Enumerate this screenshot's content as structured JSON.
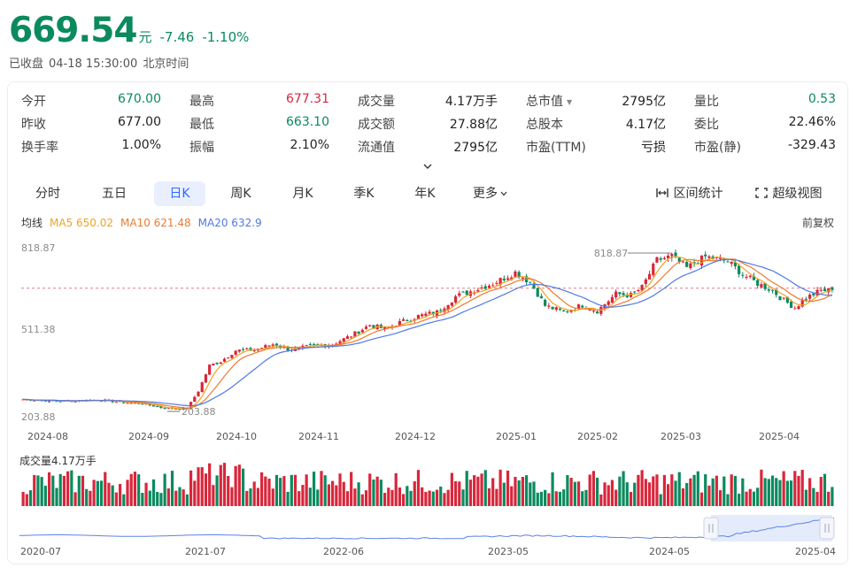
{
  "header": {
    "price": "669.54",
    "unit": "元",
    "change": "-7.46",
    "change_pct": "-1.10%",
    "status": "已收盘",
    "datetime": "04-18 15:30:00",
    "timezone": "北京时间"
  },
  "quote_rows": [
    [
      {
        "label": "今开",
        "value": "670.00",
        "color": "#0b8a5e"
      },
      {
        "label": "最高",
        "value": "677.31",
        "color": "#d9263b"
      },
      {
        "label": "成交量",
        "value": "4.17万手",
        "color": "#222222"
      },
      {
        "label": "总市值",
        "value": "2795亿",
        "color": "#222222"
      },
      {
        "label": "量比",
        "value": "0.53",
        "color": "#0b8a5e"
      }
    ],
    [
      {
        "label": "昨收",
        "value": "677.00",
        "color": "#222222"
      },
      {
        "label": "最低",
        "value": "663.10",
        "color": "#0b8a5e"
      },
      {
        "label": "成交额",
        "value": "27.88亿",
        "color": "#222222"
      },
      {
        "label": "总股本",
        "value": "4.17亿",
        "color": "#222222"
      },
      {
        "label": "委比",
        "value": "22.46%",
        "color": "#222222"
      }
    ],
    [
      {
        "label": "换手率",
        "value": "1.00%",
        "color": "#222222"
      },
      {
        "label": "振幅",
        "value": "2.10%",
        "color": "#222222"
      },
      {
        "label": "流通值",
        "value": "2795亿",
        "color": "#222222"
      },
      {
        "label": "市盈(TTM)",
        "value": "亏损",
        "color": "#222222"
      },
      {
        "label": "市盈(静)",
        "value": "-329.43",
        "color": "#222222"
      }
    ]
  ],
  "tabs": [
    "分时",
    "五日",
    "日K",
    "周K",
    "月K",
    "季K",
    "年K",
    "更多"
  ],
  "active_tab": "日K",
  "tools": {
    "range_stats": "区间统计",
    "super_view": "超级视图"
  },
  "ma": {
    "label": "均线",
    "ma5": "MA5 650.02",
    "ma10": "MA10 621.48",
    "ma20": "MA20 632.9",
    "ma5_color": "#f0a321",
    "ma10_color": "#ef7a2e",
    "ma20_color": "#4f79e6"
  },
  "adjust": "前复权",
  "colors": {
    "up": "#d9263b",
    "down": "#0b8a5e"
  },
  "chart_data": {
    "type": "candlestick",
    "y_axis_labels": [
      "818.87",
      "511.38",
      "203.88"
    ],
    "ylim": [
      203.88,
      818.87
    ],
    "reference_price": 677.0,
    "max_annotation": "818.87",
    "min_annotation": "203.88",
    "x_tick_labels": [
      "2024-08",
      "2024-09",
      "2024-10",
      "2024-11",
      "2024-12",
      "2025-01",
      "2025-02",
      "2025-03",
      "2025-04"
    ],
    "close_anchors": [
      [
        0,
        250
      ],
      [
        10,
        243
      ],
      [
        20,
        249
      ],
      [
        25,
        241
      ],
      [
        32,
        233
      ],
      [
        38,
        216
      ],
      [
        44,
        215
      ],
      [
        47,
        282
      ],
      [
        50,
        380
      ],
      [
        53,
        396
      ],
      [
        57,
        438
      ],
      [
        62,
        440
      ],
      [
        67,
        462
      ],
      [
        72,
        440
      ],
      [
        77,
        454
      ],
      [
        83,
        462
      ],
      [
        88,
        495
      ],
      [
        93,
        536
      ],
      [
        97,
        520
      ],
      [
        101,
        545
      ],
      [
        106,
        570
      ],
      [
        111,
        585
      ],
      [
        116,
        645
      ],
      [
        121,
        670
      ],
      [
        126,
        695
      ],
      [
        132,
        738
      ],
      [
        136,
        700
      ],
      [
        140,
        610
      ],
      [
        145,
        585
      ],
      [
        150,
        612
      ],
      [
        154,
        590
      ],
      [
        159,
        655
      ],
      [
        163,
        650
      ],
      [
        166,
        680
      ],
      [
        170,
        785
      ],
      [
        174,
        800
      ],
      [
        178,
        755
      ],
      [
        183,
        798
      ],
      [
        189,
        780
      ],
      [
        193,
        730
      ],
      [
        197,
        695
      ],
      [
        201,
        668
      ],
      [
        204,
        630
      ],
      [
        207,
        602
      ],
      [
        210,
        640
      ],
      [
        214,
        668
      ],
      [
        217,
        669.54
      ]
    ],
    "volume_label": "成交量4.17万手",
    "navigator_x_labels": [
      "2020-07",
      "2021-07",
      "2022-06",
      "2023-05",
      "2024-05",
      "2025-04"
    ]
  }
}
